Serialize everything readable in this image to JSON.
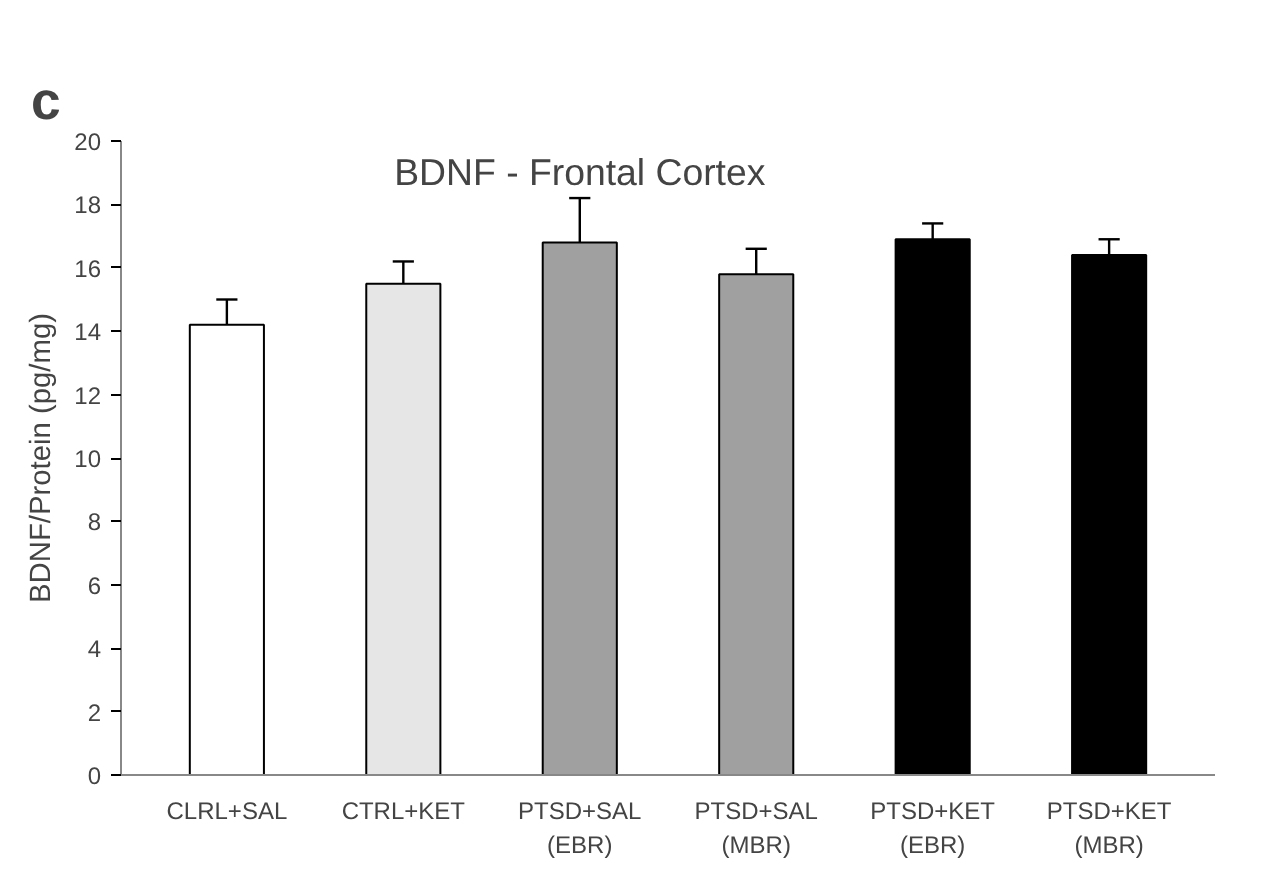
{
  "chart_data": {
    "type": "bar",
    "title": "BDNF - Frontal Cortex",
    "ylabel": "BDNF/Protein (pg/mg)",
    "categories": [
      "CLRL+SAL",
      "CTRL+KET",
      "PTSD+SAL\n(EBR)",
      "PTSD+SAL\n(MBR)",
      "PTSD+KET\n(EBR)",
      "PTSD+KET\n(MBR)"
    ],
    "values": [
      14.2,
      15.5,
      16.8,
      15.8,
      16.9,
      16.4
    ],
    "errors": [
      [
        14.2,
        15.0
      ],
      [
        15.5,
        16.2
      ],
      [
        16.8,
        18.2
      ],
      [
        15.8,
        16.6
      ],
      [
        16.9,
        17.4
      ],
      [
        16.4,
        16.9
      ]
    ],
    "colors": [
      "#ffffff",
      "#e6e6e6",
      "#a0a0a0",
      "#a0a0a0",
      "#000000",
      "#000000"
    ],
    "ylim": [
      0,
      20
    ],
    "yticks": [
      0,
      2,
      4,
      6,
      8,
      10,
      12,
      14,
      16,
      18,
      20
    ],
    "grid": false,
    "annotations": [
      "c"
    ]
  }
}
